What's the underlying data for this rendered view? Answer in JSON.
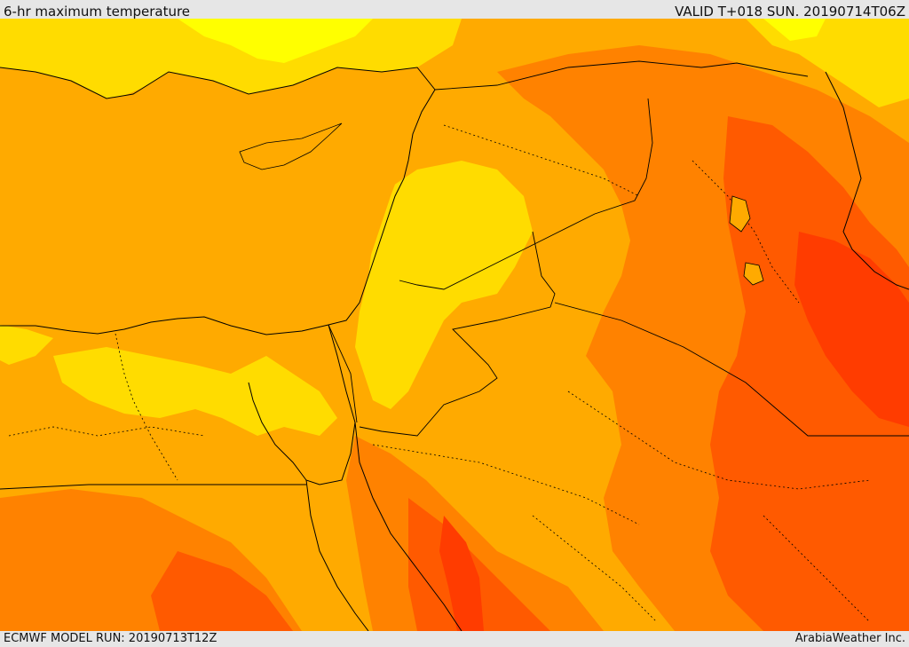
{
  "header": {
    "title": "6-hr maximum temperature",
    "valid_time": "VALID T+018 SUN. 20190714T06Z"
  },
  "footer": {
    "model_run": "ECMWF MODEL RUN: 20190713T12Z",
    "credit": "ArabiaWeather Inc."
  },
  "colors": {
    "background": "#e6e6e6",
    "temp_very_warm": "#ffff00",
    "temp_warm": "#ffdc00",
    "temp_hot": "#ffaa00",
    "temp_very_hot": "#ff8200",
    "temp_extreme": "#ff5a00",
    "temp_max": "#ff3c00",
    "border_line": "#000000"
  }
}
